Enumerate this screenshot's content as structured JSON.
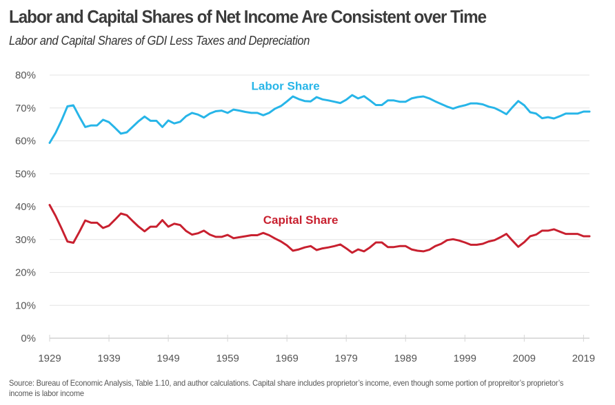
{
  "header": {
    "title": "Labor and Capital Shares of Net Income Are Consistent over Time",
    "subtitle": "Labor and Capital Shares of GDI Less Taxes and Depreciation"
  },
  "footer": {
    "source": "Source: Bureau of Economic Analysis, Table 1.10, and author calculations. Capital share includes proprietor’s income, even though some portion of propreitor’s proprietor’s income is labor income"
  },
  "chart_data": {
    "type": "line",
    "title": "Labor and Capital Shares of Net Income Are Consistent over Time",
    "subtitle": "Labor and Capital Shares of GDI Less Taxes and Depreciation",
    "xlabel": "",
    "ylabel": "",
    "xlim": [
      1929,
      2020
    ],
    "ylim": [
      0,
      80
    ],
    "x_ticks": [
      1929,
      1939,
      1949,
      1959,
      1969,
      1979,
      1989,
      1999,
      2009,
      2019
    ],
    "y_ticks": [
      0,
      10,
      20,
      30,
      40,
      50,
      60,
      70,
      80
    ],
    "y_tick_labels": [
      "0%",
      "10%",
      "20%",
      "30%",
      "40%",
      "50%",
      "60%",
      "70%",
      "80%"
    ],
    "grid": "horizontal",
    "legend": "inline labels",
    "x_start": 1929,
    "series": [
      {
        "name": "Labor Share",
        "color": "#27b5e8",
        "values": [
          59.4,
          62.4,
          66.2,
          70.5,
          70.8,
          67.4,
          64.2,
          64.7,
          64.7,
          66.4,
          65.7,
          64.0,
          62.2,
          62.6,
          64.3,
          66.0,
          67.4,
          66.1,
          66.1,
          64.2,
          66.2,
          65.3,
          65.8,
          67.5,
          68.5,
          68.0,
          67.1,
          68.3,
          69.0,
          69.2,
          68.5,
          69.5,
          69.2,
          68.8,
          68.5,
          68.5,
          67.8,
          68.5,
          69.8,
          70.6,
          72.0,
          73.5,
          72.7,
          72.1,
          72.0,
          73.3,
          72.6,
          72.3,
          71.9,
          71.5,
          72.5,
          73.9,
          72.9,
          73.6,
          72.3,
          70.9,
          70.9,
          72.3,
          72.3,
          71.9,
          71.9,
          72.9,
          73.3,
          73.5,
          72.9,
          72.0,
          71.2,
          70.4,
          69.8,
          70.4,
          70.8,
          71.4,
          71.4,
          71.1,
          70.4,
          70.0,
          69.1,
          68.1,
          70.2,
          72.1,
          70.8,
          68.7,
          68.3,
          66.9,
          67.2,
          66.8,
          67.5,
          68.3,
          68.3,
          68.3,
          68.9,
          68.9
        ]
      },
      {
        "name": "Capital Share",
        "color": "#c8202f",
        "values": [
          40.5,
          37.2,
          33.4,
          29.4,
          29.0,
          32.3,
          35.8,
          35.1,
          35.1,
          33.5,
          34.2,
          36.0,
          37.9,
          37.4,
          35.6,
          33.9,
          32.5,
          33.9,
          33.9,
          35.9,
          33.9,
          34.8,
          34.4,
          32.6,
          31.5,
          31.9,
          32.7,
          31.5,
          30.8,
          30.8,
          31.4,
          30.4,
          30.7,
          31.0,
          31.3,
          31.3,
          32.0,
          31.3,
          30.3,
          29.4,
          28.2,
          26.6,
          27.0,
          27.6,
          28.0,
          26.8,
          27.3,
          27.6,
          28.0,
          28.5,
          27.3,
          26.0,
          27.0,
          26.4,
          27.6,
          29.1,
          29.1,
          27.7,
          27.7,
          28.0,
          28.0,
          27.0,
          26.6,
          26.4,
          26.9,
          28.0,
          28.7,
          29.8,
          30.1,
          29.7,
          29.1,
          28.4,
          28.4,
          28.7,
          29.4,
          29.8,
          30.7,
          31.7,
          29.7,
          27.8,
          29.2,
          31.0,
          31.5,
          32.7,
          32.7,
          33.1,
          32.4,
          31.7,
          31.7,
          31.7,
          31.0,
          31.0
        ]
      }
    ],
    "annotations": [
      {
        "text": "Labor Share",
        "series": "Labor Share",
        "near_x": 1963,
        "near_y": 75.5
      },
      {
        "text": "Capital Share",
        "series": "Capital Share",
        "near_x": 1965,
        "near_y": 34.8
      }
    ]
  }
}
